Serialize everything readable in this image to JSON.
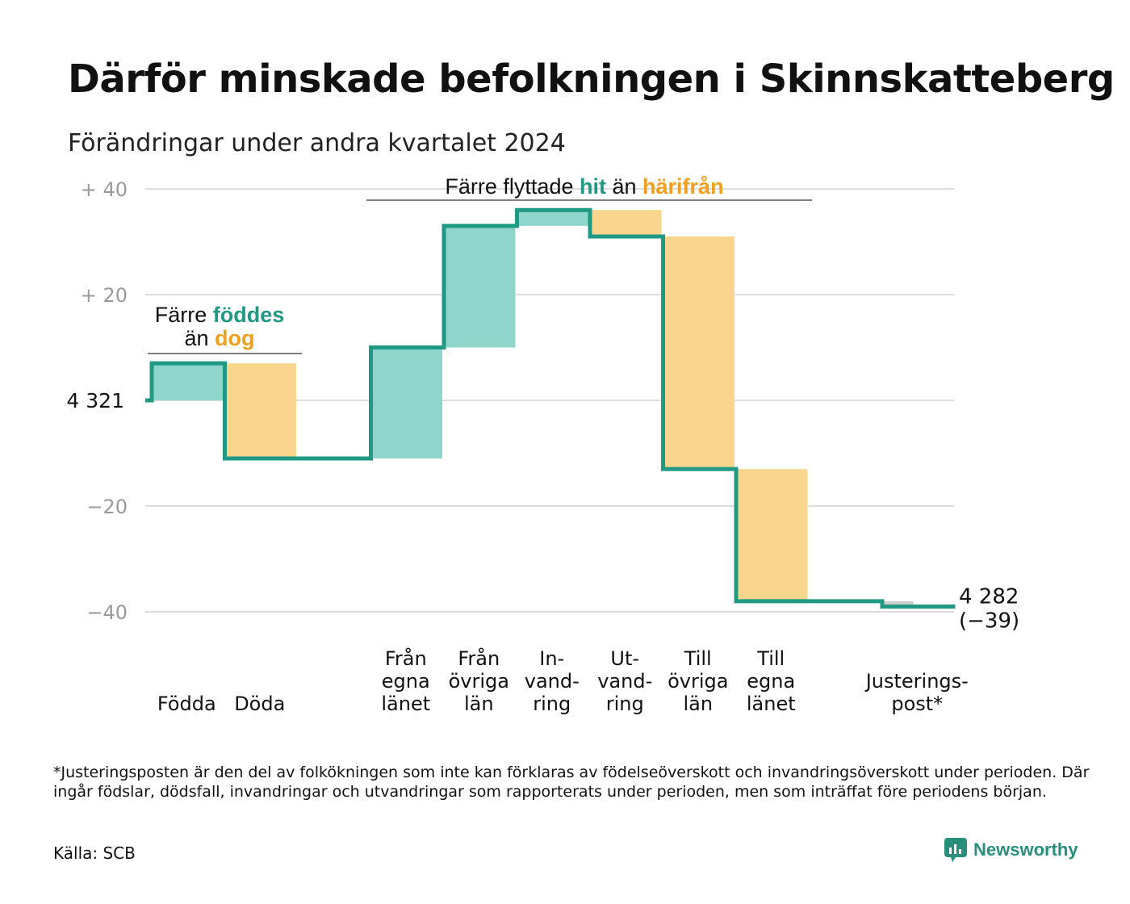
{
  "header": {
    "title": "Därför minskade befolkningen i Skinnskatteberg",
    "subtitle": "Förändringar under andra kvartalet 2024"
  },
  "colors": {
    "increase": "#8fd5cb",
    "decrease": "#fad58e",
    "line": "#1f9984",
    "adjustment": "#cccccc",
    "grid": "#dddddd",
    "teal_text": "#1f9984",
    "orange_text": "#f0a020"
  },
  "chart_data": {
    "type": "waterfall",
    "start_value": 4321,
    "start_label": "4 321",
    "end_value": 4282,
    "end_label": "4 282",
    "end_change_label": "(−39)",
    "ylim": [
      -43,
      40
    ],
    "yticks": [
      {
        "value": 40,
        "label": "+  40"
      },
      {
        "value": 20,
        "label": "+  20"
      },
      {
        "value": -20,
        "label": "−20"
      },
      {
        "value": -40,
        "label": "−40"
      }
    ],
    "grid": true,
    "steps": [
      {
        "category": [
          "Födda"
        ],
        "change": 7,
        "kind": "increase"
      },
      {
        "category": [
          "Döda"
        ],
        "change": -18,
        "kind": "decrease"
      },
      {
        "category": [],
        "change": 0,
        "kind": "spacer"
      },
      {
        "category": [
          "Från",
          "egna",
          "länet"
        ],
        "change": 21,
        "kind": "increase"
      },
      {
        "category": [
          "Från",
          "övriga",
          "län"
        ],
        "change": 23,
        "kind": "increase"
      },
      {
        "category": [
          "In-",
          "vand-",
          "ring"
        ],
        "change": 3,
        "kind": "increase"
      },
      {
        "category": [
          "Ut-",
          "vand-",
          "ring"
        ],
        "change": -5,
        "kind": "decrease"
      },
      {
        "category": [
          "Till",
          "övriga",
          "län"
        ],
        "change": -44,
        "kind": "decrease"
      },
      {
        "category": [
          "Till",
          "egna",
          "länet"
        ],
        "change": -25,
        "kind": "decrease"
      },
      {
        "category": [],
        "change": 0,
        "kind": "spacer"
      },
      {
        "category": [
          "Justerings-",
          "post*"
        ],
        "change": -1,
        "kind": "adjustment"
      }
    ],
    "annotations": [
      {
        "id": "births",
        "parts": [
          {
            "line": 1,
            "text": "Färre ",
            "color": "dark"
          },
          {
            "line": 1,
            "text": "föddes",
            "color": "teal"
          },
          {
            "line": 2,
            "text": "än ",
            "color": "dark"
          },
          {
            "line": 2,
            "text": "dog",
            "color": "orange"
          }
        ]
      },
      {
        "id": "migration",
        "parts": [
          {
            "line": 1,
            "text": "Färre flyttade ",
            "color": "dark"
          },
          {
            "line": 1,
            "text": "hit",
            "color": "teal"
          },
          {
            "line": 1,
            "text": " än ",
            "color": "dark"
          },
          {
            "line": 1,
            "text": "härifrån",
            "color": "orange"
          }
        ]
      }
    ]
  },
  "footer": {
    "footnote": "*Justeringsposten är den del av folkökningen som inte kan förklaras av födelseöverskott och invandringsöverskott under perioden. Där ingår födslar, dödsfall, invandringar och utvandringar som rapporterats under perioden, men som inträffat före periodens början.",
    "source": "Källa: SCB",
    "brand": "Newsworthy",
    "brand_icon": "newsworthy-logo-icon"
  }
}
